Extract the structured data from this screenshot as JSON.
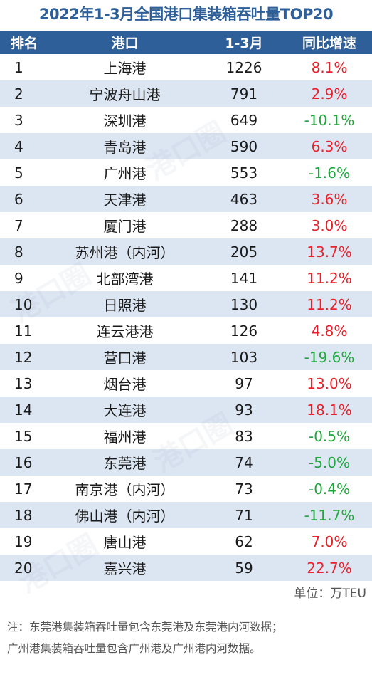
{
  "title": "2022年1-3月全国港口集装箱吞吐量TOP20",
  "columns": [
    "排名",
    "港口",
    "1-3月",
    "同比增速"
  ],
  "rows": [
    {
      "rank": "1",
      "port": "上海港",
      "value": "1226",
      "yoy": "8.1%",
      "trend": "pos"
    },
    {
      "rank": "2",
      "port": "宁波舟山港",
      "value": "791",
      "yoy": "2.9%",
      "trend": "pos"
    },
    {
      "rank": "3",
      "port": "深圳港",
      "value": "649",
      "yoy": "-10.1%",
      "trend": "neg"
    },
    {
      "rank": "4",
      "port": "青岛港",
      "value": "590",
      "yoy": "6.3%",
      "trend": "pos"
    },
    {
      "rank": "5",
      "port": "广州港",
      "value": "553",
      "yoy": "-1.6%",
      "trend": "neg"
    },
    {
      "rank": "6",
      "port": "天津港",
      "value": "463",
      "yoy": "3.6%",
      "trend": "pos"
    },
    {
      "rank": "7",
      "port": "厦门港",
      "value": "288",
      "yoy": "3.0%",
      "trend": "pos"
    },
    {
      "rank": "8",
      "port": "苏州港（内河）",
      "value": "205",
      "yoy": "13.7%",
      "trend": "pos"
    },
    {
      "rank": "9",
      "port": "北部湾港",
      "value": "141",
      "yoy": "11.2%",
      "trend": "pos"
    },
    {
      "rank": "10",
      "port": "日照港",
      "value": "130",
      "yoy": "11.2%",
      "trend": "pos"
    },
    {
      "rank": "11",
      "port": "连云港港",
      "value": "126",
      "yoy": "4.8%",
      "trend": "pos"
    },
    {
      "rank": "12",
      "port": "营口港",
      "value": "103",
      "yoy": "-19.6%",
      "trend": "neg"
    },
    {
      "rank": "13",
      "port": "烟台港",
      "value": "97",
      "yoy": "13.0%",
      "trend": "pos"
    },
    {
      "rank": "14",
      "port": "大连港",
      "value": "93",
      "yoy": "18.1%",
      "trend": "pos"
    },
    {
      "rank": "15",
      "port": "福州港",
      "value": "83",
      "yoy": "-0.5%",
      "trend": "neg"
    },
    {
      "rank": "16",
      "port": "东莞港",
      "value": "74",
      "yoy": "-5.0%",
      "trend": "neg"
    },
    {
      "rank": "17",
      "port": "南京港（内河）",
      "value": "73",
      "yoy": "-0.4%",
      "trend": "neg"
    },
    {
      "rank": "18",
      "port": "佛山港（内河）",
      "value": "71",
      "yoy": "-11.7%",
      "trend": "neg"
    },
    {
      "rank": "19",
      "port": "唐山港",
      "value": "62",
      "yoy": "7.0%",
      "trend": "pos"
    },
    {
      "rank": "20",
      "port": "嘉兴港",
      "value": "59",
      "yoy": "22.7%",
      "trend": "pos"
    }
  ],
  "unit": "单位：万TEU",
  "notes": [
    "注：东莞港集装箱吞吐量包含东莞港及东莞港内河数据；",
    "广州港集装箱吞吐量包含广州港及广州港内河数据。"
  ],
  "watermark": "港口圈",
  "colors": {
    "header_bg": "#2e5f98",
    "stripe_bg": "#dce6f3",
    "positive": "#e8212a",
    "negative": "#1ea83c"
  }
}
